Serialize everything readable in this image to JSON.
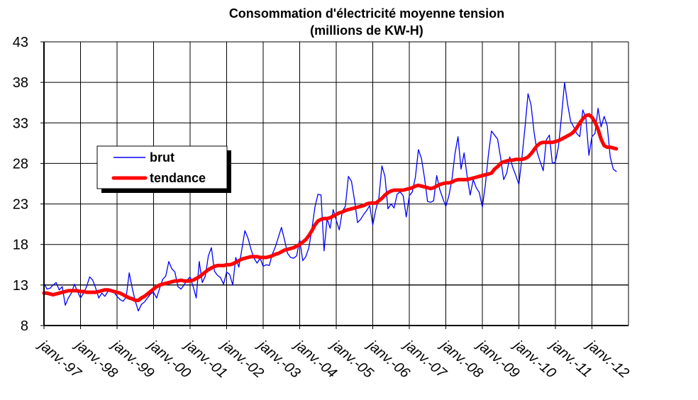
{
  "chart_data": {
    "type": "line",
    "title": "Consommation d'électricité moyenne tension",
    "subtitle": "(millions de KW-H)",
    "xlabel": "",
    "ylabel": "",
    "ylim": [
      8,
      43
    ],
    "yticks": [
      "8",
      "13",
      "18",
      "23",
      "28",
      "33",
      "38",
      "43"
    ],
    "x_start": "janv.-97",
    "x_end": "août-12",
    "xticks": [
      "janv.-97",
      "janv.-98",
      "janv.-99",
      "janv.-00",
      "janv.-01",
      "janv.-02",
      "janv.-03",
      "janv.-04",
      "janv.-05",
      "janv.-06",
      "janv.-07",
      "janv.-08",
      "janv.-09",
      "janv.-10",
      "janv.-11",
      "janv.-12"
    ],
    "grid": true,
    "legend_position": "left-middle",
    "series": [
      {
        "name": "brut",
        "color": "#0000ff",
        "style": "thin",
        "values": [
          13.2,
          12.5,
          12.6,
          13.0,
          13.3,
          12.4,
          12.8,
          10.5,
          11.4,
          12.0,
          13.1,
          12.2,
          11.4,
          12.0,
          12.8,
          14.0,
          13.6,
          12.6,
          11.4,
          12.0,
          11.6,
          12.2,
          12.5,
          12.1,
          11.6,
          11.2,
          11.0,
          11.5,
          14.5,
          12.6,
          11.0,
          9.8,
          10.6,
          10.9,
          11.4,
          11.9,
          12.1,
          11.4,
          12.6,
          13.7,
          14.1,
          15.9,
          15.0,
          14.6,
          12.8,
          12.5,
          13.0,
          13.6,
          14.0,
          12.8,
          11.4,
          15.9,
          13.3,
          14.1,
          16.6,
          17.6,
          14.7,
          14.2,
          13.9,
          13.1,
          14.6,
          14.3,
          13.0,
          16.4,
          15.2,
          17.4,
          19.7,
          18.8,
          17.4,
          16.3,
          15.7,
          16.3,
          15.3,
          15.5,
          15.4,
          16.8,
          17.7,
          18.9,
          20.1,
          18.6,
          16.9,
          16.4,
          16.3,
          16.6,
          18.6,
          16.0,
          16.5,
          17.6,
          19.9,
          22.6,
          24.2,
          24.1,
          17.2,
          21.2,
          20.0,
          22.3,
          21.0,
          19.8,
          22.1,
          22.7,
          26.4,
          25.8,
          23.5,
          20.7,
          21.1,
          21.7,
          22.2,
          22.8,
          20.4,
          22.3,
          23.7,
          27.7,
          26.4,
          22.4,
          23.0,
          22.5,
          24.2,
          24.5,
          24.0,
          21.4,
          24.0,
          24.5,
          26.3,
          29.7,
          28.6,
          26.2,
          23.3,
          23.2,
          23.4,
          26.5,
          24.8,
          23.7,
          22.7,
          24.0,
          26.0,
          29.2,
          31.3,
          27.3,
          29.3,
          26.4,
          24.1,
          26.0,
          25.0,
          24.4,
          22.6,
          25.4,
          29.1,
          32.0,
          31.5,
          31.0,
          28.7,
          26.0,
          26.8,
          28.8,
          27.5,
          26.5,
          25.4,
          28.7,
          32.4,
          36.6,
          35.2,
          31.8,
          29.4,
          28.2,
          27.1,
          30.9,
          31.5,
          28.0,
          28.2,
          30.1,
          33.8,
          38.0,
          35.3,
          33.2,
          32.5,
          31.7,
          31.3,
          34.6,
          33.6,
          29.0,
          31.3,
          31.7,
          34.8,
          32.5,
          33.8,
          32.7,
          28.8,
          27.3,
          27.0
        ]
      },
      {
        "name": "tendance",
        "color": "#ff0000",
        "style": "thick",
        "values": [
          12.0,
          12.0,
          11.9,
          11.8,
          11.9,
          12.0,
          12.1,
          12.2,
          12.3,
          12.3,
          12.3,
          12.3,
          12.2,
          12.2,
          12.1,
          12.1,
          12.1,
          12.1,
          12.2,
          12.3,
          12.4,
          12.4,
          12.3,
          12.2,
          12.1,
          12.0,
          11.8,
          11.6,
          11.4,
          11.3,
          11.1,
          11.1,
          11.4,
          11.6,
          11.9,
          12.2,
          12.5,
          12.8,
          13.0,
          13.1,
          13.2,
          13.3,
          13.4,
          13.5,
          13.5,
          13.6,
          13.5,
          13.5,
          13.5,
          13.6,
          13.8,
          14.0,
          14.3,
          14.6,
          14.9,
          15.1,
          15.3,
          15.4,
          15.4,
          15.4,
          15.5,
          15.5,
          15.6,
          15.8,
          16.0,
          16.2,
          16.3,
          16.4,
          16.5,
          16.5,
          16.5,
          16.4,
          16.4,
          16.4,
          16.5,
          16.6,
          16.8,
          16.9,
          17.1,
          17.3,
          17.4,
          17.5,
          17.6,
          17.8,
          18.0,
          18.3,
          18.6,
          19.1,
          19.7,
          20.4,
          20.9,
          21.1,
          21.2,
          21.2,
          21.3,
          21.5,
          21.7,
          21.9,
          22.0,
          22.2,
          22.3,
          22.4,
          22.5,
          22.6,
          22.7,
          22.8,
          23.0,
          23.1,
          23.1,
          23.1,
          23.4,
          23.7,
          24.1,
          24.4,
          24.6,
          24.7,
          24.7,
          24.7,
          24.7,
          24.8,
          24.9,
          25.0,
          25.2,
          25.3,
          25.2,
          25.1,
          25.0,
          24.9,
          25.0,
          25.2,
          25.4,
          25.5,
          25.6,
          25.6,
          25.7,
          25.9,
          26.0,
          26.0,
          26.0,
          26.0,
          26.1,
          26.2,
          26.3,
          26.4,
          26.5,
          26.6,
          26.7,
          26.8,
          27.3,
          27.6,
          28.0,
          28.2,
          28.3,
          28.4,
          28.4,
          28.5,
          28.5,
          28.5,
          28.6,
          28.8,
          29.2,
          29.7,
          30.2,
          30.5,
          30.6,
          30.6,
          30.6,
          30.6,
          30.7,
          30.8,
          31.0,
          31.2,
          31.4,
          31.6,
          31.9,
          32.4,
          33.0,
          33.5,
          33.9,
          34.0,
          33.7,
          33.1,
          32.2,
          31.0,
          30.2,
          30.0,
          30.0,
          29.9,
          29.8
        ]
      }
    ]
  }
}
